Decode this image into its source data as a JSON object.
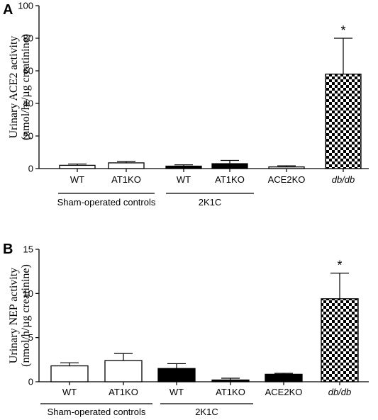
{
  "chart_data": [
    {
      "type": "bar",
      "panel": "A",
      "ylabel": [
        "Urinary ACE2 activity",
        "(nmol/hr/µg creatinine)"
      ],
      "ylim": [
        0,
        100
      ],
      "yticks": [
        0,
        20,
        40,
        60,
        80,
        100
      ],
      "categories": [
        "WT",
        "AT1KO",
        "WT",
        "AT1KO",
        "ACE2KO",
        "db/db"
      ],
      "italic_categories": [
        "db/db"
      ],
      "values": [
        2.0,
        3.5,
        1.5,
        3.0,
        1.0,
        58
      ],
      "errors": [
        0.8,
        0.8,
        0.8,
        2.0,
        0.7,
        22
      ],
      "fills": [
        "white",
        "white",
        "black",
        "black",
        "white",
        "checker"
      ],
      "annotations": [
        {
          "category_index": 5,
          "text": "*"
        }
      ],
      "groups": [
        {
          "label": "Sham-operated controls",
          "from": 0,
          "to": 1
        },
        {
          "label": "2K1C",
          "from": 2,
          "to": 3
        }
      ]
    },
    {
      "type": "bar",
      "panel": "B",
      "ylabel": [
        "Urinary NEP activity",
        "(nmol/h/µg creatinine)"
      ],
      "ylim": [
        0,
        15
      ],
      "yticks": [
        0,
        5,
        10,
        15
      ],
      "categories": [
        "WT",
        "AT1KO",
        "WT",
        "AT1KO",
        "ACE2KO",
        "db/db"
      ],
      "italic_categories": [
        "db/db"
      ],
      "values": [
        1.8,
        2.4,
        1.5,
        0.2,
        0.85,
        9.4
      ],
      "errors": [
        0.35,
        0.8,
        0.55,
        0.2,
        0.1,
        2.9
      ],
      "fills": [
        "white",
        "white",
        "black",
        "black",
        "black",
        "checker"
      ],
      "annotations": [
        {
          "category_index": 5,
          "text": "*"
        }
      ],
      "groups": [
        {
          "label": "Sham-operated controls",
          "from": 0,
          "to": 1
        },
        {
          "label": "2K1C",
          "from": 2,
          "to": 3
        }
      ]
    }
  ]
}
